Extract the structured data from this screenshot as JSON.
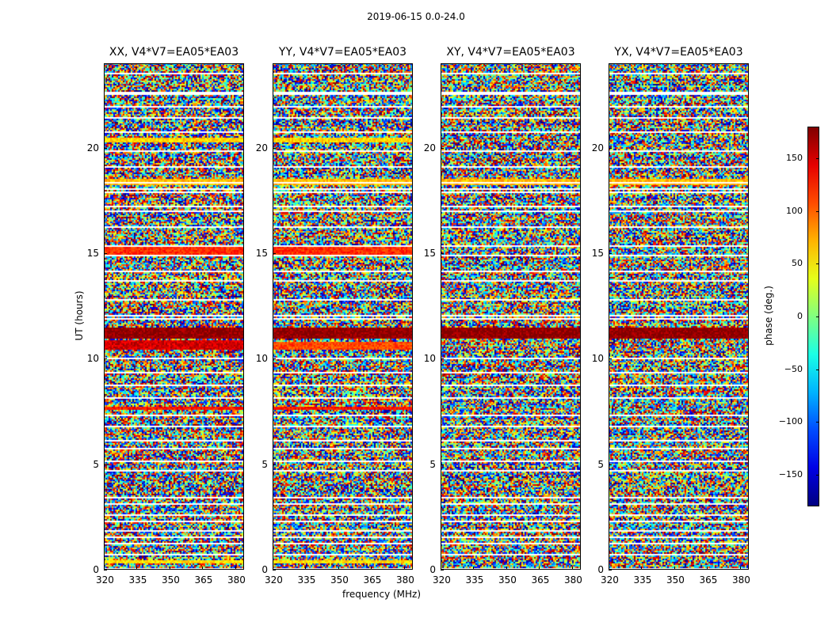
{
  "chart_data": {
    "type": "heatmap",
    "title": "2019-06-15 0.0-24.0",
    "xlabel": "frequency (MHz)",
    "ylabel": "UT (hours)",
    "xlim": [
      320,
      384
    ],
    "ylim": [
      0,
      24
    ],
    "xticks": [
      320,
      335,
      350,
      365,
      380
    ],
    "yticks": [
      0,
      5,
      10,
      15,
      20
    ],
    "colorbar": {
      "label": "phase (deg.)",
      "range": [
        -180,
        180
      ],
      "ticks": [
        150,
        100,
        50,
        0,
        -50,
        -100,
        -150
      ],
      "colormap": "jet"
    },
    "panels": [
      {
        "title": "XX, V4*V7=EA05*EA03",
        "seed": 11
      },
      {
        "title": "YY, V4*V7=EA05*EA03",
        "seed": 23
      },
      {
        "title": "XY, V4*V7=EA05*EA03",
        "seed": 37
      },
      {
        "title": "YX, V4*V7=EA05*EA03",
        "seed": 53
      }
    ],
    "flagged_ut_hours": [
      0.1,
      0.75,
      1.25,
      1.6,
      1.85,
      2.35,
      2.65,
      3.15,
      3.45,
      4.7,
      5.15,
      5.75,
      6.15,
      6.85,
      7.35,
      8.2,
      8.75,
      9.35,
      10.05,
      11.95,
      12.1,
      12.85,
      13.7,
      14.2,
      14.9,
      15.35,
      16.3,
      17.05,
      17.25,
      17.95,
      18.1,
      18.35,
      19.15,
      19.85,
      20.75,
      21.45,
      21.95,
      22.55,
      22.65,
      23.55
    ],
    "coherent_bands": [
      {
        "panels": [
          0,
          1
        ],
        "ut": [
          0.35,
          0.5
        ],
        "phase": 55
      },
      {
        "panels": [
          0,
          1
        ],
        "ut": [
          7.6,
          7.8
        ],
        "phase": 130
      },
      {
        "panels": [
          0
        ],
        "ut": [
          10.5,
          10.9
        ],
        "phase": 150
      },
      {
        "panels": [
          1
        ],
        "ut": [
          10.5,
          10.8
        ],
        "phase": 110
      },
      {
        "panels": [
          0,
          1
        ],
        "ut": [
          15.0,
          15.3
        ],
        "phase": 120
      },
      {
        "panels": [
          0,
          1,
          2,
          3
        ],
        "ut": [
          18.25,
          18.55
        ],
        "phase": 70
      },
      {
        "panels": [
          0,
          1
        ],
        "ut": [
          20.3,
          20.5
        ],
        "phase": 60
      },
      {
        "panels": [
          0,
          1,
          2,
          3
        ],
        "ut": [
          11.0,
          11.5
        ],
        "phase": 175
      }
    ]
  }
}
